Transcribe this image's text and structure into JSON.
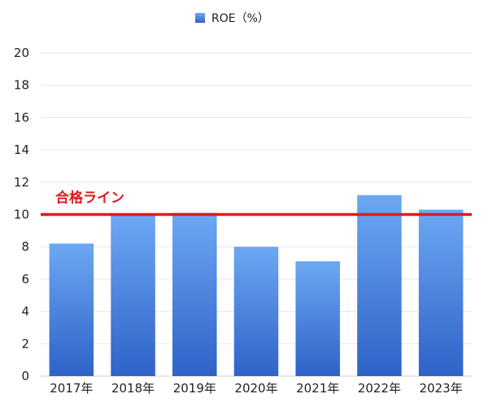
{
  "chart_data": {
    "type": "bar",
    "categories": [
      "2017年",
      "2018年",
      "2019年",
      "2020年",
      "2021年",
      "2022年",
      "2023年"
    ],
    "series": [
      {
        "name": "ROE（%）",
        "values": [
          8.2,
          10.0,
          10.1,
          8.0,
          7.1,
          11.2,
          10.3
        ]
      }
    ],
    "xlabel": "",
    "ylabel": "",
    "ylim": [
      0,
      20
    ],
    "yticks": [
      0,
      2,
      4,
      6,
      8,
      10,
      12,
      14,
      16,
      18,
      20
    ],
    "grid": true,
    "legend_position": "top-center",
    "reference_line": {
      "value": 10,
      "label": "合格ライン",
      "color": "#e0191b"
    },
    "colors": {
      "bar_top": "#6ca8f3",
      "bar_bottom": "#2f62c8",
      "grid": "#e6e6e6",
      "axis": "#cccccc"
    }
  }
}
